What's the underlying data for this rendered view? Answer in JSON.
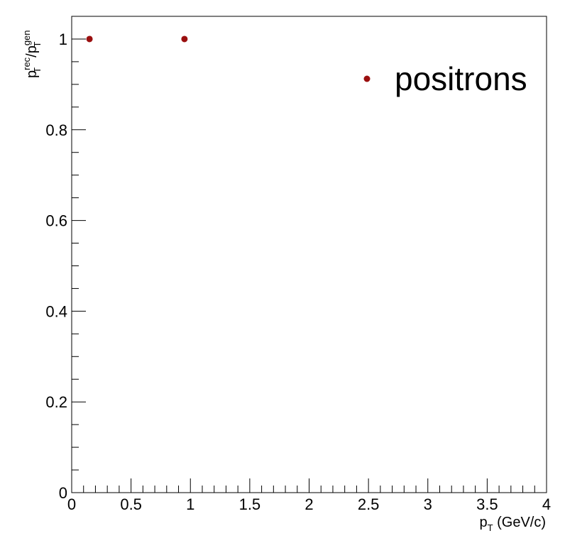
{
  "chart_data": {
    "type": "scatter",
    "title": "",
    "xlabel": "p_T (GeV/c)",
    "xlabel_parts": {
      "main": "p",
      "sub": "T",
      "rest": " (GeV/c)"
    },
    "ylabel": "p_T^rec/p_T^gen",
    "ylabel_parts": {
      "p1": "p",
      "sup1": "rec",
      "sub1": "T",
      "slash": "/",
      "p2": "p",
      "sup2": "gen",
      "sub2": "T"
    },
    "xlim": [
      0,
      4
    ],
    "ylim": [
      0,
      1.05
    ],
    "xticks": [
      "0",
      "0.5",
      "1",
      "1.5",
      "2",
      "2.5",
      "3",
      "3.5",
      "4"
    ],
    "yticks": [
      "0",
      "0.2",
      "0.4",
      "0.6",
      "0.8",
      "1"
    ],
    "grid": false,
    "legend_position": "top-right",
    "series": [
      {
        "name": "positrons",
        "color": "#9a0f0f",
        "marker": "circle",
        "points": [
          {
            "x": 0.15,
            "y": 1.0
          },
          {
            "x": 0.95,
            "y": 1.0
          }
        ]
      }
    ]
  }
}
